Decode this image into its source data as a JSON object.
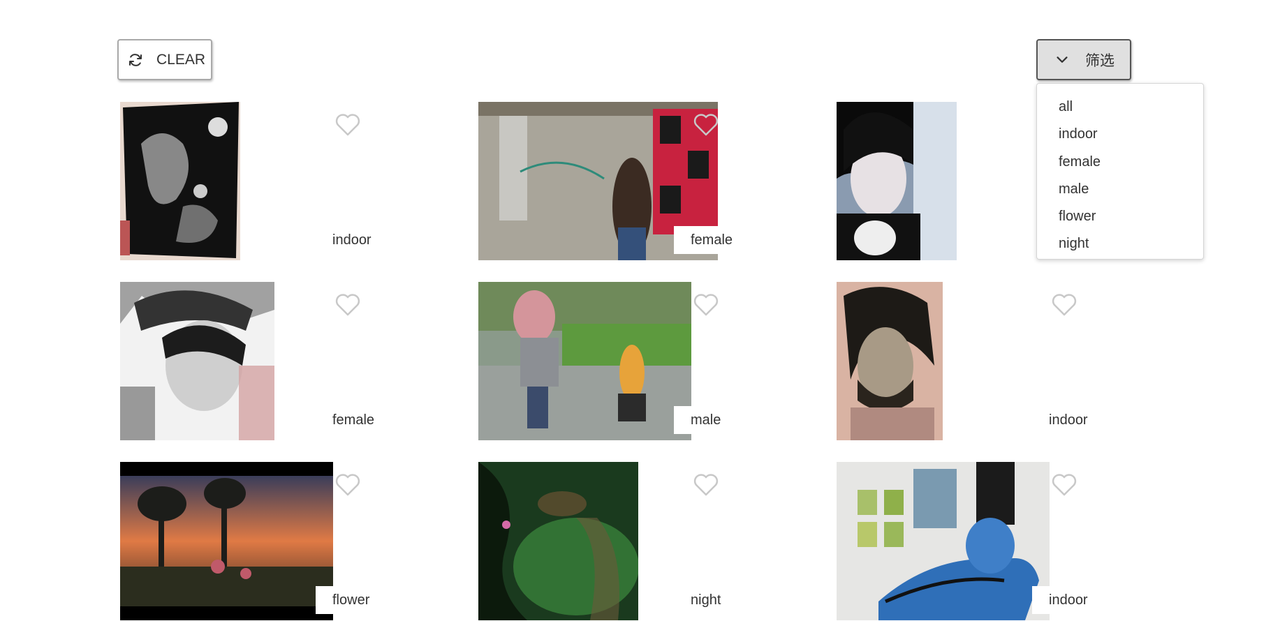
{
  "toolbar": {
    "clear_label": "CLEAR",
    "filter_label": "筛选"
  },
  "filter_menu": {
    "options": [
      "all",
      "indoor",
      "female",
      "male",
      "flower",
      "night"
    ]
  },
  "gallery": {
    "items": [
      {
        "tag": "indoor",
        "icon": "heart-outline-icon"
      },
      {
        "tag": "female",
        "icon": "heart-outline-icon"
      },
      {
        "tag": "",
        "icon": "heart-outline-icon"
      },
      {
        "tag": "female",
        "icon": "heart-outline-icon"
      },
      {
        "tag": "male",
        "icon": "heart-outline-icon"
      },
      {
        "tag": "indoor",
        "icon": "heart-outline-icon"
      },
      {
        "tag": "flower",
        "icon": "heart-outline-icon"
      },
      {
        "tag": "night",
        "icon": "heart-outline-icon"
      },
      {
        "tag": "indoor",
        "icon": "heart-outline-icon"
      }
    ]
  },
  "colors": {
    "heart_stroke": "#c8c8c8",
    "text": "#333333",
    "filter_bg": "#e0e0e0"
  }
}
